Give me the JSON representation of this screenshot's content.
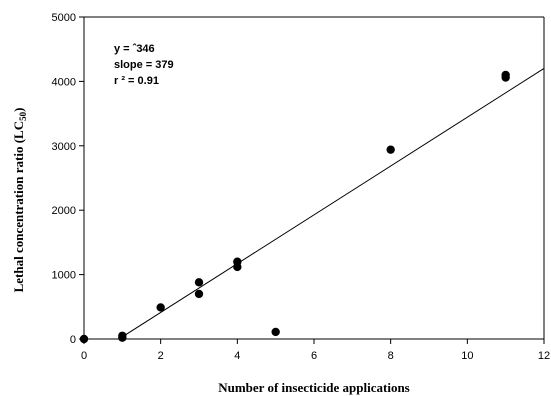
{
  "chart_data": {
    "type": "scatter",
    "xlabel": "Number of insecticide applications",
    "ylabel": "Lethal concentration ratio (LC",
    "ylabel_sub": "50",
    "ylabel_close": ")",
    "xlim": [
      0,
      12
    ],
    "ylim": [
      0,
      5000
    ],
    "xticks": [
      0,
      2,
      4,
      6,
      8,
      10,
      12
    ],
    "yticks": [
      0,
      1000,
      2000,
      3000,
      4000,
      5000
    ],
    "grid": false,
    "points": [
      {
        "x": 0,
        "y": 0
      },
      {
        "x": 1,
        "y": 20
      },
      {
        "x": 1,
        "y": 50
      },
      {
        "x": 2,
        "y": 490
      },
      {
        "x": 3,
        "y": 700
      },
      {
        "x": 3,
        "y": 880
      },
      {
        "x": 4,
        "y": 1120
      },
      {
        "x": 4,
        "y": 1200
      },
      {
        "x": 5,
        "y": 110
      },
      {
        "x": 8,
        "y": 2940
      },
      {
        "x": 11,
        "y": 4060
      },
      {
        "x": 11,
        "y": 4100
      }
    ],
    "fit_line": {
      "intercept": -346,
      "slope": 379,
      "x_start": 0.913,
      "x_end": 12
    },
    "annotations": [
      "y = ˆ346",
      "slope = 379",
      "r ² = 0.91"
    ]
  }
}
